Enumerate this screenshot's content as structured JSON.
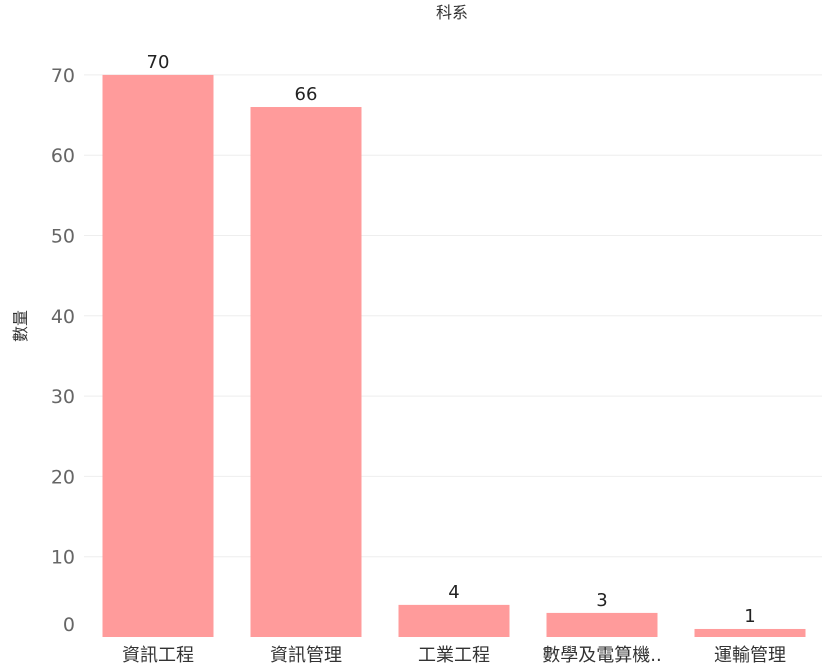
{
  "chart_data": {
    "type": "bar",
    "title": "",
    "top_axis_label": "科系",
    "xlabel": "",
    "ylabel": "數量",
    "categories": [
      "資訊工程",
      "資訊管理",
      "工業工程",
      "數學及電算機..",
      "運輸管理"
    ],
    "values": [
      70,
      66,
      4,
      3,
      1
    ],
    "data_labels": [
      "70",
      "66",
      "4",
      "3",
      "1"
    ],
    "yticks": [
      0,
      10,
      20,
      30,
      40,
      50,
      60,
      70
    ],
    "ylim": [
      0,
      76
    ],
    "grid": true,
    "legend": "none",
    "bar_color": "#ff9b9b"
  }
}
